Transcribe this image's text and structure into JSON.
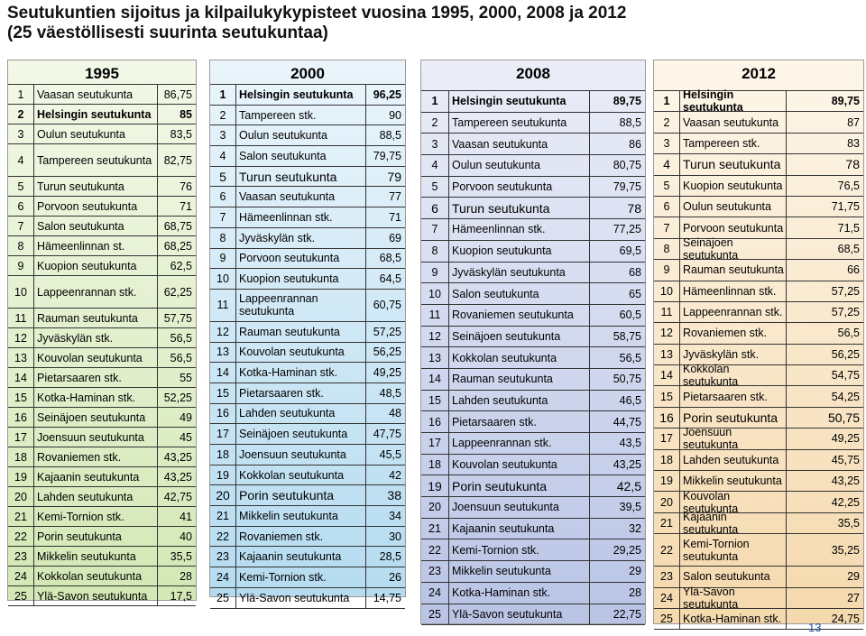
{
  "title_line1": "Seutukuntien sijoitus ja kilpailukykypisteet vuosina 1995, 2000, 2008 ja 2012",
  "title_line2": "(25 väestöllisesti suurinta seutukuntaa)",
  "page_number": "13",
  "panels": [
    {
      "year": "1995",
      "rows": [
        {
          "rank": "1",
          "name": "Vaasan seutukunta",
          "value": "86,75"
        },
        {
          "rank": "2",
          "name": "Helsingin seutukunta",
          "value": "85",
          "bold": true
        },
        {
          "rank": "3",
          "name": "Oulun seutukunta",
          "value": "83,5"
        },
        {
          "rank": "4",
          "name": "Tampereen seutukunta",
          "value": "82,75",
          "tall": true
        },
        {
          "rank": "5",
          "name": "Turun seutukunta",
          "value": "76"
        },
        {
          "rank": "6",
          "name": "Porvoon seutukunta",
          "value": "71"
        },
        {
          "rank": "7",
          "name": "Salon seutukunta",
          "value": "68,75"
        },
        {
          "rank": "8",
          "name": "Hämeenlinnan st.",
          "value": "68,25"
        },
        {
          "rank": "9",
          "name": "Kuopion seutukunta",
          "value": "62,5"
        },
        {
          "rank": "10",
          "name": "Lappeenrannan stk.",
          "value": "62,25",
          "tall": true
        },
        {
          "rank": "11",
          "name": "Rauman seutukunta",
          "value": "57,75"
        },
        {
          "rank": "12",
          "name": "Jyväskylän stk.",
          "value": "56,5"
        },
        {
          "rank": "13",
          "name": "Kouvolan seutukunta",
          "value": "56,5"
        },
        {
          "rank": "14",
          "name": "Pietarsaaren stk.",
          "value": "55"
        },
        {
          "rank": "15",
          "name": "Kotka-Haminan stk.",
          "value": "52,25"
        },
        {
          "rank": "16",
          "name": "Seinäjoen seutukunta",
          "value": "49"
        },
        {
          "rank": "17",
          "name": "Joensuun seutukunta",
          "value": "45"
        },
        {
          "rank": "18",
          "name": "Rovaniemen stk.",
          "value": "43,25"
        },
        {
          "rank": "19",
          "name": "Kajaanin seutukunta",
          "value": "43,25"
        },
        {
          "rank": "20",
          "name": "Lahden seutukunta",
          "value": "42,75"
        },
        {
          "rank": "21",
          "name": "Kemi-Tornion stk.",
          "value": "41"
        },
        {
          "rank": "22",
          "name": "Porin seutukunta",
          "value": "40"
        },
        {
          "rank": "23",
          "name": "Mikkelin seutukunta",
          "value": "35,5"
        },
        {
          "rank": "24",
          "name": "Kokkolan seutukunta",
          "value": "28"
        },
        {
          "rank": "25",
          "name": "Ylä-Savon seutukunta",
          "value": "17,5"
        }
      ]
    },
    {
      "year": "2000",
      "rows": [
        {
          "rank": "1",
          "name": "Helsingin seutukunta",
          "value": "96,25",
          "bold": true
        },
        {
          "rank": "2",
          "name": "Tampereen stk.",
          "value": "90"
        },
        {
          "rank": "3",
          "name": "Oulun seutukunta",
          "value": "88,5"
        },
        {
          "rank": "4",
          "name": "Salon seutukunta",
          "value": "79,75"
        },
        {
          "rank": "5",
          "name": "Turun seutukunta",
          "value": "79",
          "big": true
        },
        {
          "rank": "6",
          "name": "Vaasan seutukunta",
          "value": "77"
        },
        {
          "rank": "7",
          "name": "Hämeenlinnan stk.",
          "value": "71"
        },
        {
          "rank": "8",
          "name": "Jyväskylän stk.",
          "value": "69"
        },
        {
          "rank": "9",
          "name": "Porvoon seutukunta",
          "value": "68,5"
        },
        {
          "rank": "10",
          "name": "Kuopion seutukunta",
          "value": "64,5"
        },
        {
          "rank": "11",
          "name": "Lappeenrannan seutukunta",
          "value": "60,75",
          "tall": true
        },
        {
          "rank": "12",
          "name": "Rauman seutukunta",
          "value": "57,25"
        },
        {
          "rank": "13",
          "name": "Kouvolan seutukunta",
          "value": "56,25"
        },
        {
          "rank": "14",
          "name": "Kotka-Haminan stk.",
          "value": "49,25"
        },
        {
          "rank": "15",
          "name": "Pietarsaaren stk.",
          "value": "48,5"
        },
        {
          "rank": "16",
          "name": "Lahden seutukunta",
          "value": "48"
        },
        {
          "rank": "17",
          "name": "Seinäjoen seutukunta",
          "value": "47,75"
        },
        {
          "rank": "18",
          "name": "Joensuun seutukunta",
          "value": "45,5"
        },
        {
          "rank": "19",
          "name": "Kokkolan seutukunta",
          "value": "42"
        },
        {
          "rank": "20",
          "name": "Porin seutukunta",
          "value": "38",
          "big": true
        },
        {
          "rank": "21",
          "name": "Mikkelin seutukunta",
          "value": "34"
        },
        {
          "rank": "22",
          "name": "Rovaniemen stk.",
          "value": "30"
        },
        {
          "rank": "23",
          "name": "Kajaanin seutukunta",
          "value": "28,5"
        },
        {
          "rank": "24",
          "name": "Kemi-Tornion stk.",
          "value": "26"
        },
        {
          "rank": "25",
          "name": "Ylä-Savon seutukunta",
          "value": "14,75"
        }
      ]
    },
    {
      "year": "2008",
      "rows": [
        {
          "rank": "1",
          "name": "Helsingin seutukunta",
          "value": "89,75",
          "bold": true
        },
        {
          "rank": "2",
          "name": "Tampereen seutukunta",
          "value": "88,5"
        },
        {
          "rank": "3",
          "name": "Vaasan seutukunta",
          "value": "86"
        },
        {
          "rank": "4",
          "name": "Oulun seutukunta",
          "value": "80,75"
        },
        {
          "rank": "5",
          "name": "Porvoon seutukunta",
          "value": "79,75"
        },
        {
          "rank": "6",
          "name": "Turun seutukunta",
          "value": "78",
          "big": true
        },
        {
          "rank": "7",
          "name": "Hämeenlinnan stk.",
          "value": "77,25"
        },
        {
          "rank": "8",
          "name": "Kuopion seutukunta",
          "value": "69,5"
        },
        {
          "rank": "9",
          "name": "Jyväskylän seutukunta",
          "value": "68"
        },
        {
          "rank": "10",
          "name": "Salon seutukunta",
          "value": "65"
        },
        {
          "rank": "11",
          "name": "Rovaniemen seutukunta",
          "value": "60,5"
        },
        {
          "rank": "12",
          "name": "Seinäjoen seutukunta",
          "value": "58,75"
        },
        {
          "rank": "13",
          "name": "Kokkolan seutukunta",
          "value": "56,5"
        },
        {
          "rank": "14",
          "name": "Rauman seutukunta",
          "value": "50,75"
        },
        {
          "rank": "15",
          "name": "Lahden seutukunta",
          "value": "46,5"
        },
        {
          "rank": "16",
          "name": "Pietarsaaren stk.",
          "value": "44,75"
        },
        {
          "rank": "17",
          "name": "Lappeenrannan stk.",
          "value": "43,5"
        },
        {
          "rank": "18",
          "name": "Kouvolan seutukunta",
          "value": "43,25"
        },
        {
          "rank": "19",
          "name": "Porin seutukunta",
          "value": "42,5",
          "big": true
        },
        {
          "rank": "20",
          "name": "Joensuun seutukunta",
          "value": "39,5"
        },
        {
          "rank": "21",
          "name": "Kajaanin seutukunta",
          "value": "32"
        },
        {
          "rank": "22",
          "name": "Kemi-Tornion stk.",
          "value": "29,25"
        },
        {
          "rank": "23",
          "name": "Mikkelin seutukunta",
          "value": "29"
        },
        {
          "rank": "24",
          "name": "Kotka-Haminan stk.",
          "value": "28"
        },
        {
          "rank": "25",
          "name": "Ylä-Savon seutukunta",
          "value": "22,75"
        }
      ]
    },
    {
      "year": "2012",
      "rows": [
        {
          "rank": "1",
          "name": "Helsingin seutukunta",
          "value": "89,75",
          "bold": true
        },
        {
          "rank": "2",
          "name": "Vaasan seutukunta",
          "value": "87"
        },
        {
          "rank": "3",
          "name": "Tampereen stk.",
          "value": "83"
        },
        {
          "rank": "4",
          "name": "Turun seutukunta",
          "value": "78",
          "big": true
        },
        {
          "rank": "5",
          "name": "Kuopion seutukunta",
          "value": "76,5"
        },
        {
          "rank": "6",
          "name": "Oulun seutukunta",
          "value": "71,75"
        },
        {
          "rank": "7",
          "name": "Porvoon seutukunta",
          "value": "71,5"
        },
        {
          "rank": "8",
          "name": "Seinäjoen seutukunta",
          "value": "68,5"
        },
        {
          "rank": "9",
          "name": "Rauman seutukunta",
          "value": "66"
        },
        {
          "rank": "10",
          "name": "Hämeenlinnan stk.",
          "value": "57,25"
        },
        {
          "rank": "11",
          "name": "Lappeenrannan  stk.",
          "value": "57,25"
        },
        {
          "rank": "12",
          "name": "Rovaniemen  stk.",
          "value": "56,5"
        },
        {
          "rank": "13",
          "name": "Jyväskylän stk.",
          "value": "56,25"
        },
        {
          "rank": "14",
          "name": "Kokkolan seutukunta",
          "value": "54,75"
        },
        {
          "rank": "15",
          "name": "Pietarsaaren stk.",
          "value": "54,25"
        },
        {
          "rank": "16",
          "name": "Porin seutukunta",
          "value": "50,75",
          "big": true
        },
        {
          "rank": "17",
          "name": "Joensuun seutukunta",
          "value": "49,25"
        },
        {
          "rank": "18",
          "name": "Lahden seutukunta",
          "value": "45,75"
        },
        {
          "rank": "19",
          "name": "Mikkelin seutukunta",
          "value": "43,25"
        },
        {
          "rank": "20",
          "name": "Kouvolan seutukunta",
          "value": "42,25"
        },
        {
          "rank": "21",
          "name": "Kajaanin seutukunta",
          "value": "35,5"
        },
        {
          "rank": "22",
          "name": "Kemi-Tornion seutukunta",
          "value": "35,25",
          "tall": true
        },
        {
          "rank": "23",
          "name": "Salon seutukunta",
          "value": "29"
        },
        {
          "rank": "24",
          "name": "Ylä-Savon seutukunta",
          "value": "27"
        },
        {
          "rank": "25",
          "name": "Kotka-Haminan stk.",
          "value": "24,75"
        }
      ]
    }
  ]
}
